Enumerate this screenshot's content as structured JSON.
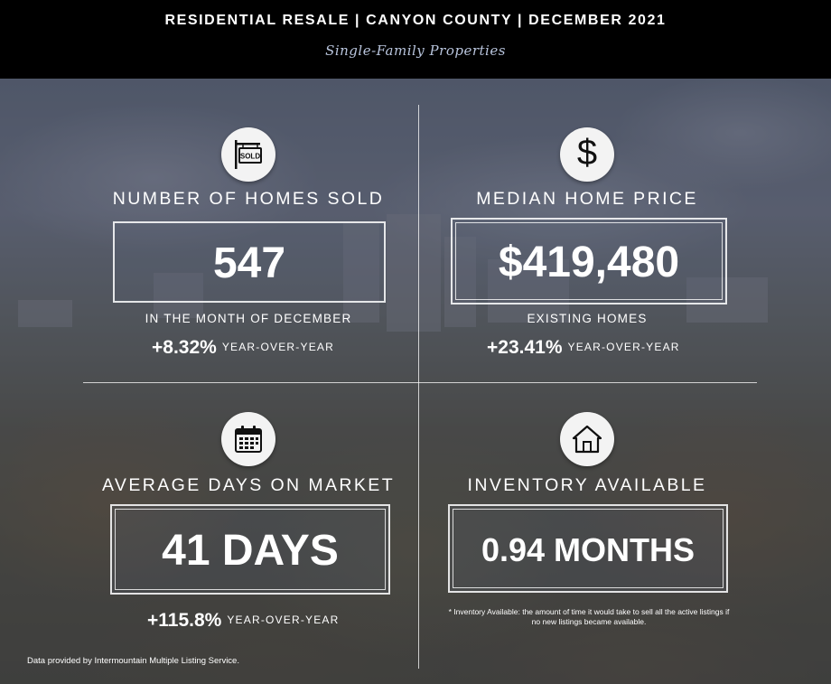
{
  "header": {
    "title": "RESIDENTIAL RESALE | CANYON COUNTY | DECEMBER 2021",
    "subtitle": "Single-Family Properties"
  },
  "homes_sold": {
    "icon": "sold-sign-icon",
    "icon_text": "SOLD",
    "label": "NUMBER OF HOMES SOLD",
    "value": "547",
    "sub": "IN THE MONTH OF DECEMBER",
    "change": "+8.32%",
    "change_label": "YEAR-OVER-YEAR"
  },
  "median_price": {
    "icon": "dollar-icon",
    "icon_text": "$",
    "label": "MEDIAN HOME PRICE",
    "value": "$419,480",
    "sub": "EXISTING HOMES",
    "change": "+23.41%",
    "change_label": "YEAR-OVER-YEAR"
  },
  "days_on_market": {
    "icon": "calendar-icon",
    "label": "AVERAGE DAYS ON MARKET",
    "value": "41 DAYS",
    "change": "+115.8%",
    "change_label": "YEAR-OVER-YEAR"
  },
  "inventory": {
    "icon": "house-icon",
    "label": "INVENTORY AVAILABLE",
    "value": "0.94 MONTHS",
    "note": "* Inventory Available: the amount of time it would take to sell all the active listings if no new listings became available."
  },
  "footer": {
    "source": "Data provided by Intermountain Multiple Listing Service."
  }
}
